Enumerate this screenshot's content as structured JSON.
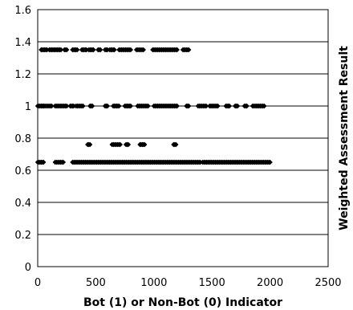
{
  "chart_data": {
    "type": "scatter",
    "title": "",
    "xlabel": "Bot (1) or Non-Bot (0) Indicator",
    "ylabel": "Weighted Assessment Result",
    "xlim": [
      0,
      2500
    ],
    "ylim": [
      0,
      1.6
    ],
    "x_ticks": [
      "0",
      "500",
      "1000",
      "1500",
      "2000",
      "2500"
    ],
    "y_ticks": [
      "0",
      "0.2",
      "0.4",
      "0.6",
      "0.8",
      "1",
      "1.2",
      "1.4",
      "1.6"
    ],
    "grid": "horizontal",
    "legend": "none",
    "marker_color": "#000000",
    "series": [
      {
        "points": [
          {
            "y": 1.35,
            "x_ranges": [
              [
                30,
                80
              ],
              [
                100,
                140
              ],
              [
                150,
                200
              ],
              [
                230,
                250
              ],
              [
                300,
                340
              ],
              [
                380,
                420
              ],
              [
                440,
                480
              ],
              [
                520,
                540
              ],
              [
                580,
                600
              ],
              [
                620,
                660
              ],
              [
                700,
                800
              ],
              [
                850,
                910
              ],
              [
                990,
                1200
              ],
              [
                1250,
                1300
              ]
            ]
          },
          {
            "y": 1.0,
            "x_ranges": [
              [
                0,
                50
              ],
              [
                50,
                120
              ],
              [
                150,
                250
              ],
              [
                280,
                310
              ],
              [
                330,
                390
              ],
              [
                450,
                470
              ],
              [
                580,
                600
              ],
              [
                650,
                700
              ],
              [
                750,
                800
              ],
              [
                860,
                950
              ],
              [
                1000,
                1200
              ],
              [
                1280,
                1300
              ],
              [
                1380,
                1450
              ],
              [
                1480,
                1550
              ],
              [
                1620,
                1650
              ],
              [
                1700,
                1720
              ],
              [
                1780,
                1800
              ],
              [
                1850,
                1950
              ]
            ]
          },
          {
            "y": 0.76,
            "x_ranges": [
              [
                430,
                450
              ],
              [
                640,
                710
              ],
              [
                760,
                780
              ],
              [
                880,
                920
              ],
              [
                1170,
                1190
              ]
            ]
          },
          {
            "y": 0.65,
            "x_ranges": [
              [
                0,
                50
              ],
              [
                150,
                220
              ],
              [
                300,
                1400
              ],
              [
                1420,
                2000
              ]
            ]
          }
        ]
      }
    ]
  }
}
